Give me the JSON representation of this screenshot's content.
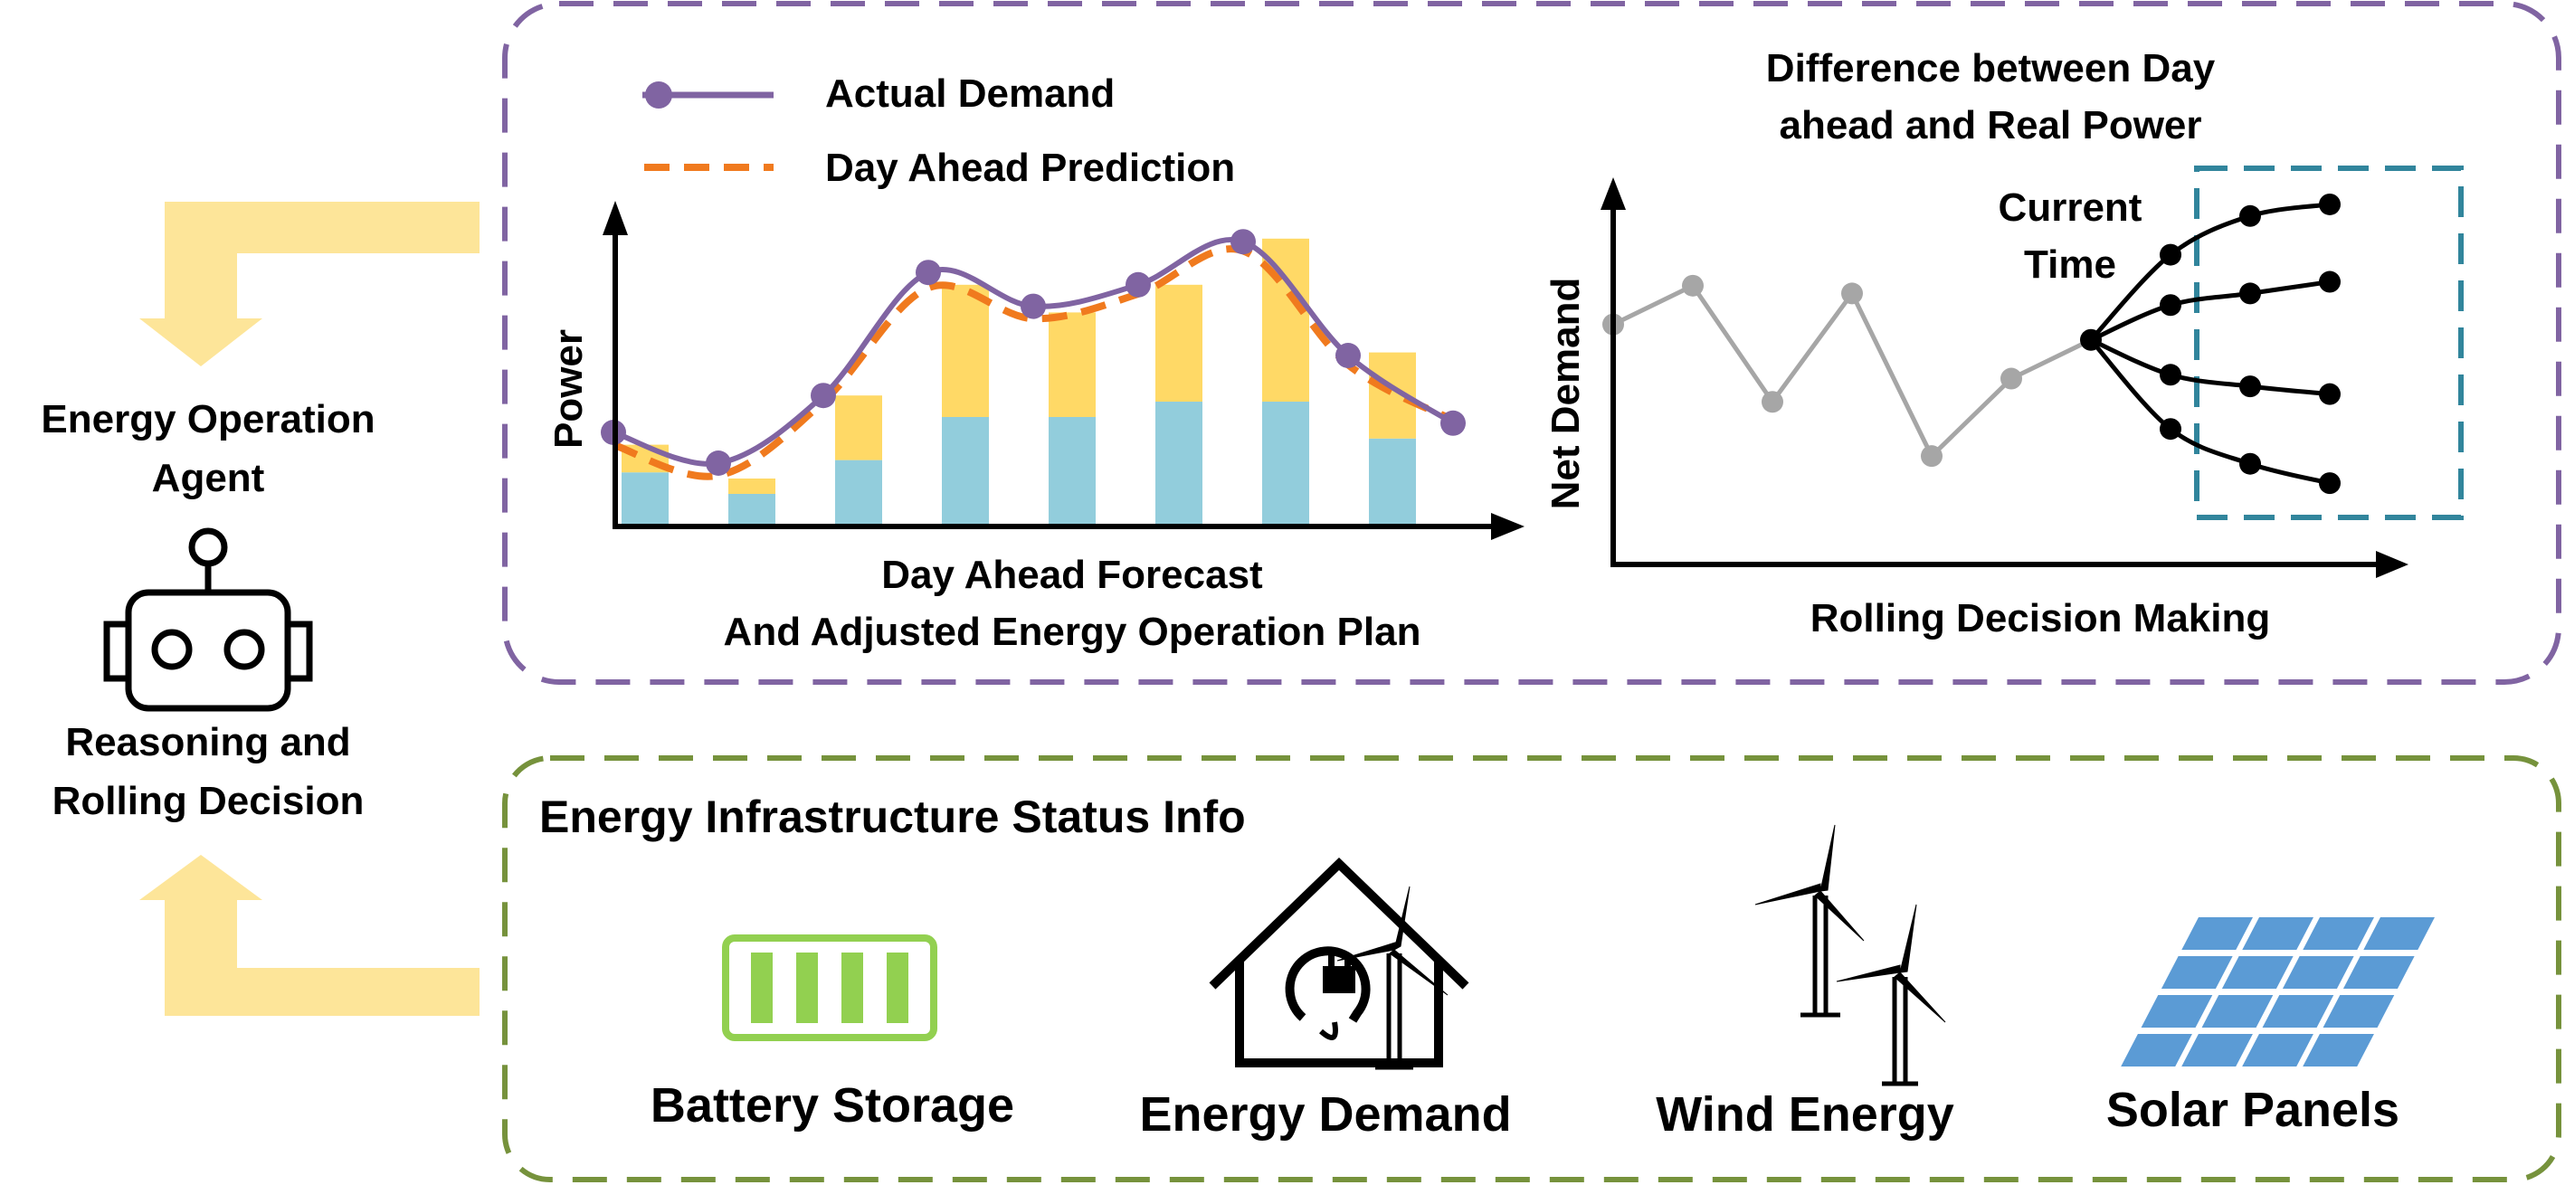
{
  "agent": {
    "title_line1": "Energy Operation",
    "title_line2": "Agent",
    "caption_line1": "Reasoning and",
    "caption_line2": "Rolling Decision",
    "icon": "robot-icon",
    "arrow_color": "#fde599"
  },
  "forecast_panel": {
    "border_color": "#8064a2",
    "legend": [
      {
        "label": "Actual Demand",
        "color": "#8064a2",
        "style": "solid-with-markers"
      },
      {
        "label": "Day Ahead Prediction",
        "color": "#f07a1e",
        "style": "dashed"
      }
    ],
    "ylabel": "Power",
    "caption_line1": "Day Ahead Forecast",
    "caption_line2": "And Adjusted Energy Operation Plan",
    "bar_colors": {
      "base": "#92cddc",
      "top": "#ffd966"
    }
  },
  "chart_data": [
    {
      "type": "bar",
      "stacked": true,
      "x": [
        0,
        1,
        2,
        3,
        4,
        5,
        6,
        7,
        8,
        9
      ],
      "series": [
        {
          "values": [
            0.17,
            0.1,
            0.21,
            0.35,
            0.35,
            0.4,
            0.4,
            0.28,
            null,
            null
          ],
          "color": "#92cddc"
        },
        {
          "values": [
            0.09,
            0.05,
            0.21,
            0.43,
            0.34,
            0.38,
            0.53,
            0.28,
            null,
            null
          ],
          "color": "#ffd966"
        }
      ],
      "ylim": [
        0,
        1
      ],
      "grid": false
    },
    {
      "type": "line",
      "x": [
        0,
        1,
        2,
        3,
        4,
        5,
        6,
        7,
        8
      ],
      "series": [
        {
          "name": "Actual Demand",
          "color": "#8064a2",
          "values": [
            0.3,
            0.2,
            0.42,
            0.82,
            0.71,
            0.78,
            0.92,
            0.55,
            0.33
          ]
        },
        {
          "name": "Day Ahead Prediction",
          "color": "#f07a1e",
          "values": [
            0.26,
            0.16,
            0.4,
            0.77,
            0.67,
            0.75,
            0.89,
            0.52,
            0.34
          ]
        }
      ],
      "ylim": [
        0,
        1
      ],
      "grid": false
    },
    {
      "type": "line",
      "title": "Difference between Day ahead and Real Power",
      "xlabel": "Rolling Decision Making",
      "ylabel": "Net Demand",
      "annotation": "Current Time",
      "history": {
        "x": [
          0,
          1,
          2,
          3,
          4,
          5,
          6
        ],
        "values": [
          0.62,
          0.72,
          0.42,
          0.7,
          0.28,
          0.48,
          0.58
        ],
        "color": "#a6a6a6"
      },
      "scenarios": [
        {
          "x": [
            6,
            7,
            8,
            9
          ],
          "values": [
            0.58,
            0.8,
            0.9,
            0.93
          ]
        },
        {
          "x": [
            6,
            7,
            8,
            9
          ],
          "values": [
            0.58,
            0.67,
            0.7,
            0.73
          ]
        },
        {
          "x": [
            6,
            7,
            8,
            9
          ],
          "values": [
            0.58,
            0.49,
            0.46,
            0.44
          ]
        },
        {
          "x": [
            6,
            7,
            8,
            9
          ],
          "values": [
            0.58,
            0.35,
            0.26,
            0.21
          ]
        }
      ],
      "scenario_color": "#000000",
      "highlight_color": "#31859c",
      "ylim": [
        0,
        1
      ],
      "xlim": [
        0,
        10
      ],
      "grid": false
    }
  ],
  "rolling_panel": {
    "title_line1": "Difference between Day",
    "title_line2": "ahead and Real Power",
    "annotation_line1": "Current",
    "annotation_line2": "Time",
    "ylabel": "Net Demand",
    "xlabel": "Rolling Decision Making"
  },
  "infra_panel": {
    "title": "Energy Infrastructure Status Info",
    "border_color": "#76923c",
    "items": [
      {
        "label": "Battery Storage",
        "icon": "battery-icon",
        "color": "#92d050"
      },
      {
        "label": "Energy Demand",
        "icon": "house-plug-icon",
        "color": "#000000"
      },
      {
        "label": "Wind Energy",
        "icon": "wind-turbine-icon",
        "color": "#000000"
      },
      {
        "label": "Solar Panels",
        "icon": "solar-panel-icon",
        "color": "#5b9bd5"
      }
    ]
  }
}
